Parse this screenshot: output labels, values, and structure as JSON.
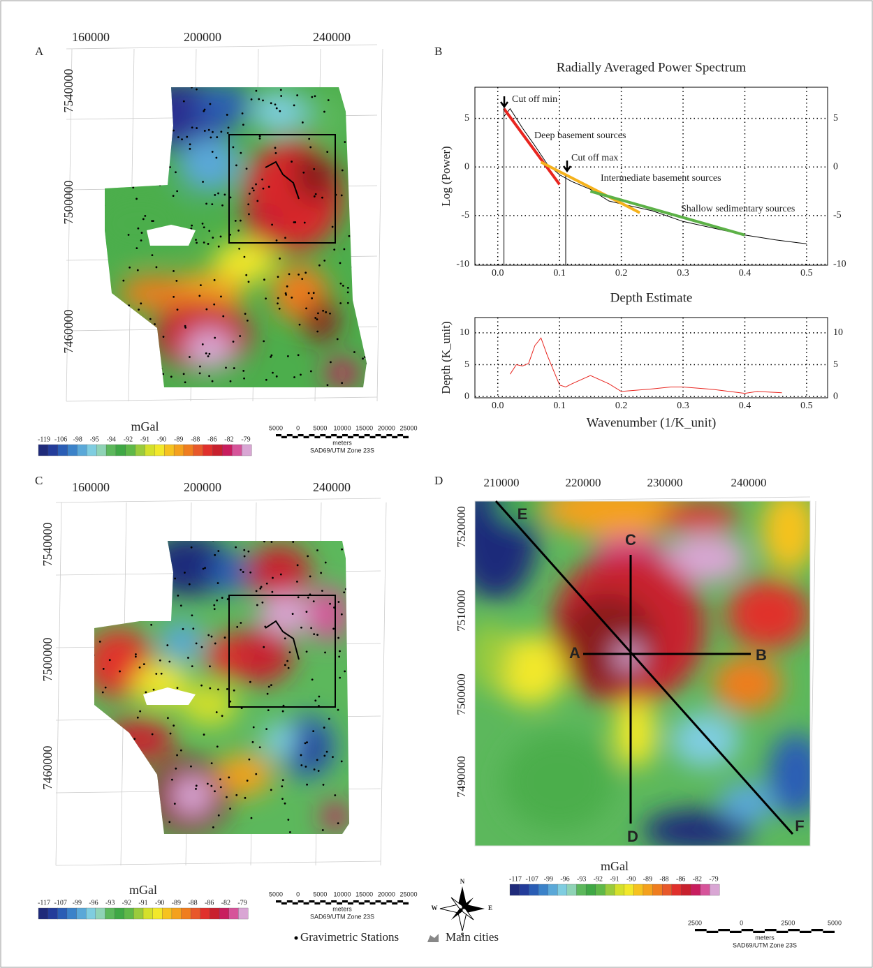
{
  "chart_data": [
    {
      "type": "line",
      "title": "Radially Averaged Power Spectrum",
      "y_label": "Log (Power)",
      "xlim": [
        -0.037,
        0.534
      ],
      "ylim": [
        -10.1,
        8.2
      ],
      "xticks": [
        {
          "value": 0,
          "label": "0.0"
        },
        0.1,
        0.2,
        0.3,
        0.4,
        0.5
      ],
      "yticks": [
        -10,
        -5,
        0,
        5
      ],
      "grid": true,
      "annotations": [
        "Cut off min",
        "Deep basement sources",
        "Cut off max",
        "Intermediate basement sources",
        "Shallow sedimentary sources"
      ],
      "series": [
        {
          "color": "#000000",
          "x": [
            0.01,
            0.02,
            0.04,
            0.06,
            0.08,
            0.1,
            0.12,
            0.15,
            0.18,
            0.2,
            0.25,
            0.3,
            0.35,
            0.4,
            0.45,
            0.5
          ],
          "values": [
            5.2,
            6,
            4,
            2.2,
            0.3,
            -0.8,
            -1.5,
            -2.3,
            -3.5,
            -3.8,
            -4.5,
            -5.6,
            -6.3,
            -7,
            -7.5,
            -7.9
          ]
        },
        {
          "color": "#e8251f",
          "x": [
            0.01,
            0.1
          ],
          "values": [
            6,
            -1.8
          ]
        },
        {
          "color": "#f5b21c",
          "x": [
            0.07,
            0.23
          ],
          "values": [
            0.5,
            -4.7
          ]
        },
        {
          "color": "#5cb147",
          "x": [
            0.15,
            0.4
          ],
          "values": [
            -2.5,
            -7
          ]
        },
        {
          "color": "#000000",
          "x": [
            0.01,
            0.01
          ],
          "values": [
            -10.1,
            6.2
          ]
        },
        {
          "color": "#000000",
          "x": [
            0.11,
            0.11
          ],
          "values": [
            -10.1,
            -0.9
          ]
        }
      ]
    },
    {
      "type": "line",
      "title": "Depth Estimate",
      "y_label": "Depth (K_unit)",
      "x_label": "Wavenumber (1/K_unit)",
      "xlim": [
        -0.037,
        0.534
      ],
      "ylim": [
        -0.2,
        12.4
      ],
      "xticks": [
        {
          "value": 0,
          "label": "0.0"
        },
        0.1,
        0.2,
        0.3,
        0.4,
        0.5
      ],
      "yticks": [
        0,
        5,
        10
      ],
      "grid": true,
      "series": [
        {
          "color": "#e8251f",
          "x": [
            0.02,
            0.03,
            0.04,
            0.05,
            0.06,
            0.07,
            0.08,
            0.1,
            0.11,
            0.12,
            0.15,
            0.18,
            0.2,
            0.25,
            0.28,
            0.3,
            0.35,
            0.4,
            0.42,
            0.46
          ],
          "values": [
            3.5,
            5,
            4.8,
            5.2,
            8,
            9.2,
            6.5,
            1.8,
            1.5,
            2,
            3.3,
            2,
            0.8,
            1.2,
            1.5,
            1.5,
            1.1,
            0.5,
            0.8,
            0.6
          ]
        }
      ]
    }
  ],
  "panels": {
    "A": {
      "label": "A",
      "x_ticks": [
        160000,
        200000,
        240000
      ],
      "y_ticks": [
        7540000,
        7500000,
        7460000
      ],
      "legend": {
        "title": "mGal",
        "labels": [
          -119,
          -106,
          -98,
          -95,
          -94,
          -92,
          -91,
          -90,
          -89,
          -88,
          -86,
          -82,
          -79
        ]
      },
      "scale": {
        "labels": [
          5000,
          0,
          5000,
          10000,
          15000,
          20000,
          25000
        ],
        "unit": "meters",
        "datum": "SAD69/UTM Zone 23S"
      }
    },
    "B": {
      "label": "B"
    },
    "C": {
      "label": "C",
      "x_ticks": [
        160000,
        200000,
        240000
      ],
      "y_ticks": [
        7540000,
        7500000,
        7460000
      ],
      "legend": {
        "title": "mGal",
        "labels": [
          -117,
          -107,
          -99,
          -96,
          -93,
          -92,
          -91,
          -90,
          -89,
          -88,
          -86,
          -82,
          -79
        ]
      },
      "scale": {
        "labels": [
          5000,
          0,
          5000,
          10000,
          15000,
          20000,
          25000
        ],
        "unit": "meters",
        "datum": "SAD69/UTM Zone 23S"
      }
    },
    "D": {
      "label": "D",
      "x_ticks": [
        210000,
        220000,
        230000,
        240000
      ],
      "y_ticks": [
        7520000,
        7510000,
        7500000,
        7490000
      ],
      "profiles": [
        "A",
        "B",
        "C",
        "D",
        "E",
        "F"
      ],
      "legend": {
        "title": "mGal",
        "labels": [
          -117,
          -107,
          -99,
          -96,
          -93,
          -92,
          -91,
          -90,
          -89,
          -88,
          -86,
          -82,
          -79
        ]
      },
      "scale": {
        "labels": [
          2500,
          0,
          2500,
          5000
        ],
        "unit": "meters",
        "datum": "SAD69/UTM Zone 23S"
      }
    }
  },
  "compass": [
    "N",
    "S",
    "E",
    "W"
  ],
  "legend": {
    "stations": "Gravimetric Stations",
    "cities": "Main cities"
  }
}
